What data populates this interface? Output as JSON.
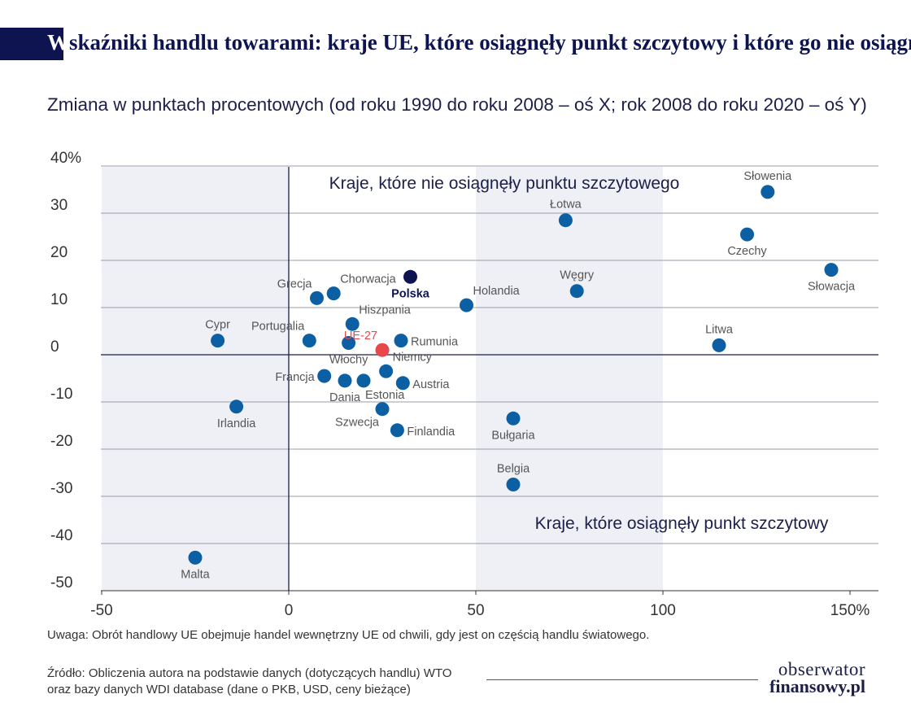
{
  "header": {
    "title_first": "W",
    "title_rest": "skaźniki handlu towarami: kraje UE, które osiągnęły punkt szczytowy i które go nie osiągnęły",
    "subtitle": "Zmiana w punktach procentowych (od roku 1990 do roku 2008 – oś X; rok 2008 do roku 2020 – oś Y)"
  },
  "chart_data": {
    "type": "scatter",
    "title": "Wskaźniki handlu towarami: kraje UE, które osiągnęły punkt szczytowy i które go nie osiągnęły",
    "subtitle": "Zmiana w punktach procentowych (od roku 1990 do roku 2008 – oś X; rok 2008 do roku 2020 – oś Y)",
    "xlim": [
      -60,
      157
    ],
    "ylim": [
      -50,
      40
    ],
    "x_ticks": [
      {
        "value": -50,
        "label": "-50"
      },
      {
        "value": 0,
        "label": "0"
      },
      {
        "value": 50,
        "label": "50"
      },
      {
        "value": 100,
        "label": "100"
      },
      {
        "value": 150,
        "label": "150%"
      }
    ],
    "y_ticks": [
      {
        "value": 40,
        "label": "40%"
      },
      {
        "value": 30,
        "label": "30"
      },
      {
        "value": 20,
        "label": "20"
      },
      {
        "value": 10,
        "label": "10"
      },
      {
        "value": 0,
        "label": "0"
      },
      {
        "value": -10,
        "label": "-10"
      },
      {
        "value": -20,
        "label": "-20"
      },
      {
        "value": -30,
        "label": "-30"
      },
      {
        "value": -40,
        "label": "-40"
      },
      {
        "value": -50,
        "label": "-50"
      }
    ],
    "grid": true,
    "shaded_x_bands": [
      [
        -50,
        0
      ],
      [
        50,
        100
      ]
    ],
    "region_labels": {
      "top": "Kraje, które nie osiągnęły punktu szczytowego",
      "bottom": "Kraje, które osiągnęły punkt szczytowy"
    },
    "colors": {
      "point": "#0d5fa3",
      "poland": "#0d1450",
      "eu": "#e8474c",
      "band": "#eef0f5",
      "axis": "#1b1f4a"
    },
    "points": [
      {
        "name": "Słowenia",
        "x": 128,
        "y": 34.5,
        "label_pos": "above"
      },
      {
        "name": "Łotwa",
        "x": 74,
        "y": 28.5,
        "label_pos": "above"
      },
      {
        "name": "Czechy",
        "x": 122.5,
        "y": 25.5,
        "label_pos": "below"
      },
      {
        "name": "Słowacja",
        "x": 145,
        "y": 18,
        "label_pos": "below"
      },
      {
        "name": "Polska",
        "x": 32.5,
        "y": 16.5,
        "label_pos": "below",
        "highlight": "poland"
      },
      {
        "name": "Węgry",
        "x": 77,
        "y": 13.5,
        "label_pos": "above"
      },
      {
        "name": "Chorwacja",
        "x": 12,
        "y": 13,
        "label_pos": "above-right"
      },
      {
        "name": "Grecja",
        "x": 7.5,
        "y": 12,
        "label_pos": "above-left"
      },
      {
        "name": "Holandia",
        "x": 47.5,
        "y": 10.5,
        "label_pos": "above-right"
      },
      {
        "name": "Hiszpania",
        "x": 17,
        "y": 6.5,
        "label_pos": "above-right"
      },
      {
        "name": "Cypr",
        "x": -19,
        "y": 3,
        "label_pos": "above"
      },
      {
        "name": "Portugalia",
        "x": 5.5,
        "y": 3,
        "label_pos": "above-left"
      },
      {
        "name": "Rumunia",
        "x": 30,
        "y": 3,
        "label_pos": "right"
      },
      {
        "name": "Włochy",
        "x": 16,
        "y": 2.5,
        "label_pos": "below"
      },
      {
        "name": "UE-27",
        "x": 25,
        "y": 1,
        "label_pos": "above-left",
        "highlight": "eu"
      },
      {
        "name": "Litwa",
        "x": 115,
        "y": 2,
        "label_pos": "above"
      },
      {
        "name": "Niemcy",
        "x": 26,
        "y": -3.5,
        "label_pos": "above-right"
      },
      {
        "name": "Francja",
        "x": 9.5,
        "y": -4.5,
        "label_pos": "left"
      },
      {
        "name": "Dania",
        "x": 15,
        "y": -5.5,
        "label_pos": "below"
      },
      {
        "name": "Estonia",
        "x": 20,
        "y": -5.5,
        "label_pos": "below-right"
      },
      {
        "name": "Austria",
        "x": 30.5,
        "y": -6,
        "label_pos": "right"
      },
      {
        "name": "Irlandia",
        "x": -14,
        "y": -11,
        "label_pos": "below"
      },
      {
        "name": "Szwecja",
        "x": 25,
        "y": -11.5,
        "label_pos": "below-left"
      },
      {
        "name": "Finlandia",
        "x": 29,
        "y": -16,
        "label_pos": "right"
      },
      {
        "name": "Bułgaria",
        "x": 60,
        "y": -13.5,
        "label_pos": "below"
      },
      {
        "name": "Belgia",
        "x": 60,
        "y": -27.5,
        "label_pos": "above"
      },
      {
        "name": "Malta",
        "x": -25,
        "y": -43,
        "label_pos": "below"
      }
    ]
  },
  "footer": {
    "note": "Uwaga: Obrót handlowy UE obejmuje handel wewnętrzny UE od chwili, gdy jest on częścią handlu światowego.",
    "source_line1": "Źródło: Obliczenia autora na podstawie danych (dotyczących handlu) WTO",
    "source_line2": "oraz bazy danych WDI database (dane o PKB, USD, ceny bieżące)",
    "brand_line1": "obserwator",
    "brand_line2": "finansowy.pl"
  }
}
